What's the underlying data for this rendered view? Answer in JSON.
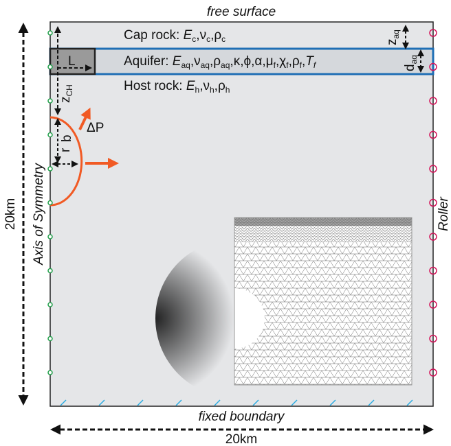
{
  "top_label": "free surface",
  "bottom_label": "fixed boundary",
  "width_label": "20km",
  "height_label": "20km",
  "left_side_label": "Axis of Symmetry",
  "right_side_label": "Roller",
  "cap_rock": {
    "prefix": "Cap rock: ",
    "E": "E",
    "E_sub": "c",
    "nu": "ν",
    "nu_sub": "c",
    "rho": "ρ",
    "rho_sub": "c"
  },
  "aquifer": {
    "prefix": "Aquifer: ",
    "E": "E",
    "E_sub": "aq",
    "nu": "ν",
    "nu_sub": "aq",
    "rho": "ρ",
    "rho_sub": "aq",
    "params": "κ,ϕ,α,",
    "mu": "μ",
    "mu_sub": "f",
    "chi": "χ",
    "chi_sub": "f",
    "rho_f": "ρ",
    "rho_f_sub": "f",
    "T": "T",
    "T_sub": "f"
  },
  "host_rock": {
    "prefix": "Host rock: ",
    "E": "E",
    "E_sub": "h",
    "nu": "ν",
    "nu_sub": "h",
    "rho": "ρ",
    "rho_sub": "h"
  },
  "dim_L": "L",
  "dim_z_ch": "z",
  "dim_z_ch_sub": "CH",
  "dim_b": "b",
  "dim_r": "r",
  "dim_z_aq": "z",
  "dim_z_aq_sub": "aq",
  "dim_d_aq": "d",
  "dim_d_aq_sub": "aq",
  "pressure_label": "ΔP",
  "colors": {
    "domain_fill": "#e5e6e8",
    "aquifer_border": "#1f6fb5",
    "chamber": "#f15a24",
    "roller": "#d4145a",
    "pin": "#22a04b",
    "hatch": "#29abe2"
  }
}
